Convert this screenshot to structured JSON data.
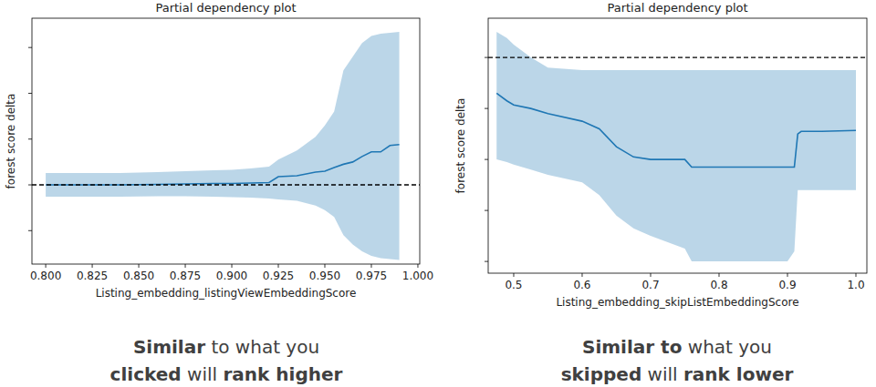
{
  "chart_data": [
    {
      "type": "line",
      "title": "Partial dependency plot",
      "x_label": "Listing_embedding_listingViewEmbeddingScore",
      "y_label": "forest score delta",
      "xlim": [
        0.7926,
        1.001
      ],
      "ylim": [
        -1.73,
        3.64
      ],
      "xticks": [
        {
          "value": 0.8,
          "label": "0.800"
        },
        {
          "value": 0.825,
          "label": "0.825"
        },
        {
          "value": 0.85,
          "label": "0.850"
        },
        {
          "value": 0.875,
          "label": "0.875"
        },
        {
          "value": 0.9,
          "label": "0.900"
        },
        {
          "value": 0.925,
          "label": "0.925"
        },
        {
          "value": 0.95,
          "label": "0.950"
        },
        {
          "value": 0.975,
          "label": "0.975"
        },
        {
          "value": 1,
          "label": "1.000"
        }
      ],
      "yticks": [
        -1,
        0,
        1,
        2,
        3
      ],
      "tick_labels": "x",
      "baseline": 0,
      "series": [
        {
          "color": "#1f77b4",
          "x": [
            0.8,
            0.82,
            0.84,
            0.86,
            0.875,
            0.89,
            0.9,
            0.91,
            0.92,
            0.925,
            0.935,
            0.945,
            0.95,
            0.955,
            0.96,
            0.965,
            0.97,
            0.975,
            0.98,
            0.985,
            0.99
          ],
          "values": [
            0,
            0,
            0,
            0.01,
            0.02,
            0.03,
            0.03,
            0.04,
            0.05,
            0.18,
            0.2,
            0.28,
            0.3,
            0.38,
            0.45,
            0.5,
            0.62,
            0.72,
            0.72,
            0.86,
            0.88
          ],
          "lower": [
            -0.26,
            -0.26,
            -0.26,
            -0.25,
            -0.25,
            -0.26,
            -0.27,
            -0.28,
            -0.3,
            -0.32,
            -0.35,
            -0.45,
            -0.55,
            -0.7,
            -1.1,
            -1.3,
            -1.45,
            -1.55,
            -1.6,
            -1.62,
            -1.64
          ],
          "upper": [
            0.26,
            0.26,
            0.26,
            0.28,
            0.3,
            0.32,
            0.33,
            0.36,
            0.4,
            0.55,
            0.75,
            1.05,
            1.3,
            1.6,
            2.5,
            2.8,
            3.1,
            3.25,
            3.3,
            3.32,
            3.34
          ]
        }
      ],
      "caption": [
        [
          {
            "text": "Similar",
            "bold": true
          },
          {
            "text": " to what you",
            "bold": false
          }
        ],
        [
          {
            "text": "clicked",
            "bold": true
          },
          {
            "text": " will ",
            "bold": false
          },
          {
            "text": "rank higher",
            "bold": true
          }
        ]
      ]
    },
    {
      "type": "line",
      "title": "Partial dependency plot",
      "x_label": "Listing_embedding_skipListEmbeddingScore",
      "y_label": "forest score delta",
      "xlim": [
        0.4627,
        1.016
      ],
      "ylim": [
        -4.23,
        0.77
      ],
      "xticks": [
        0.5,
        0.6,
        0.7,
        0.8,
        0.9,
        {
          "value": 1,
          "label": "1.0"
        }
      ],
      "yticks": [
        -4,
        -3,
        -2,
        -1,
        0
      ],
      "tick_labels": "x",
      "baseline": 0,
      "series": [
        {
          "color": "#1f77b4",
          "x": [
            0.475,
            0.49,
            0.5,
            0.525,
            0.55,
            0.6,
            0.625,
            0.65,
            0.675,
            0.7,
            0.75,
            0.76,
            0.8,
            0.85,
            0.9,
            0.91,
            0.915,
            0.92,
            0.95,
            1.0
          ],
          "values": [
            -0.7,
            -0.85,
            -0.93,
            -1.0,
            -1.1,
            -1.25,
            -1.4,
            -1.75,
            -1.95,
            -2.0,
            -2.0,
            -2.15,
            -2.15,
            -2.15,
            -2.15,
            -2.15,
            -1.5,
            -1.45,
            -1.45,
            -1.43
          ],
          "lower": [
            -2.0,
            -2.05,
            -2.1,
            -2.2,
            -2.3,
            -2.45,
            -2.7,
            -3.1,
            -3.35,
            -3.5,
            -3.75,
            -4.0,
            -4.0,
            -4.0,
            -4.0,
            -3.8,
            -2.6,
            -2.6,
            -2.6,
            -2.6
          ],
          "upper": [
            0.5,
            0.38,
            0.25,
            0.0,
            -0.2,
            -0.25,
            -0.25,
            -0.25,
            -0.25,
            -0.25,
            -0.25,
            -0.25,
            -0.25,
            -0.25,
            -0.25,
            -0.25,
            -0.25,
            -0.25,
            -0.25,
            -0.25
          ]
        }
      ],
      "caption": [
        [
          {
            "text": "Similar to",
            "bold": true
          },
          {
            "text": " what you",
            "bold": false
          }
        ],
        [
          {
            "text": "skipped",
            "bold": true
          },
          {
            "text": " will ",
            "bold": false
          },
          {
            "text": "rank lower",
            "bold": true
          }
        ]
      ]
    }
  ]
}
